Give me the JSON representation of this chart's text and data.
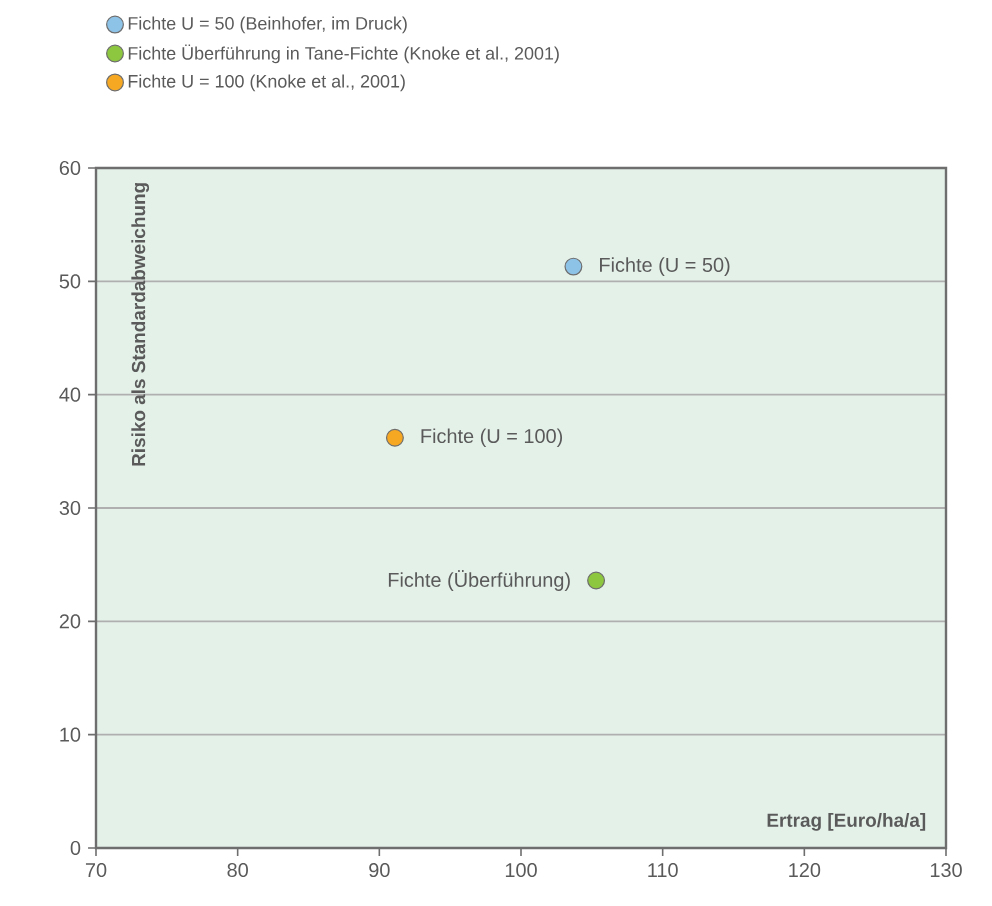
{
  "chart_data": {
    "type": "scatter",
    "xlabel": "Ertrag [Euro/ha/a]",
    "ylabel": "Risiko als Standardabweichung",
    "series": [
      {
        "name": "Fichte U = 50 (Beinhofer, im Druck)",
        "color": "#8ec3e8",
        "x": [
          103.7
        ],
        "values": [
          51.3
        ]
      },
      {
        "name": "Fichte Überführung in Tane-Fichte (Knoke et al., 2001)",
        "color": "#8dc63f",
        "x": [
          105.3
        ],
        "values": [
          23.6
        ]
      },
      {
        "name": "Fichte U = 100 (Knoke et al., 2001)",
        "color": "#f7a823",
        "x": [
          91.1
        ],
        "values": [
          36.2
        ]
      }
    ],
    "annotations": [
      {
        "text": "Fichte (U = 50)",
        "x": 103.7,
        "y": 51.3
      },
      {
        "text": "Fichte (Überführung)",
        "x": 105.3,
        "y": 23.6
      },
      {
        "text": "Fichte (U = 100)",
        "x": 91.1,
        "y": 36.2
      }
    ],
    "xlim": [
      70,
      130
    ],
    "xticks": [
      70,
      80,
      90,
      100,
      110,
      120,
      130
    ],
    "ylim": [
      0,
      60
    ],
    "yticks": [
      0,
      10,
      20,
      30,
      40,
      50,
      60
    ],
    "grid": "y",
    "legend": "top left",
    "marker": "circle"
  }
}
